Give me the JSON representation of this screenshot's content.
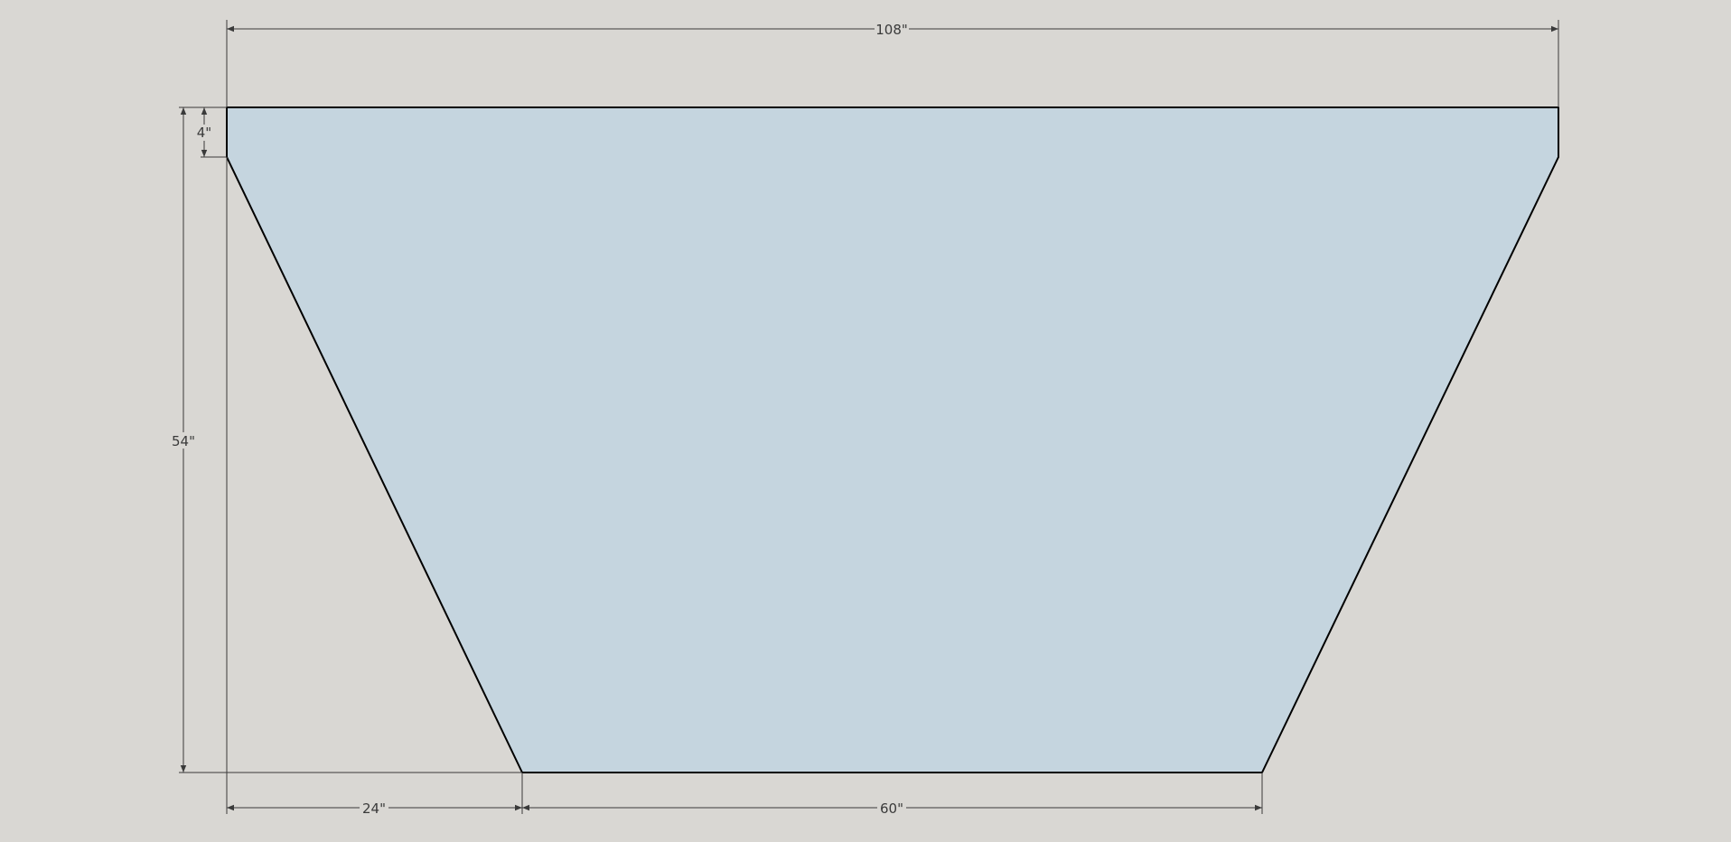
{
  "colors": {
    "background": "#d9d7d3",
    "face_fill": "#c5d5df",
    "edge": "#000000",
    "dimension_line": "#3a3a3a"
  },
  "shape": {
    "name": "trapezoid-panel"
  },
  "dimensions": {
    "top_width": "108\"",
    "total_height": "54\"",
    "top_vertical_edge": "4\"",
    "bottom_left_offset": "24\"",
    "bottom_width": "60\""
  }
}
